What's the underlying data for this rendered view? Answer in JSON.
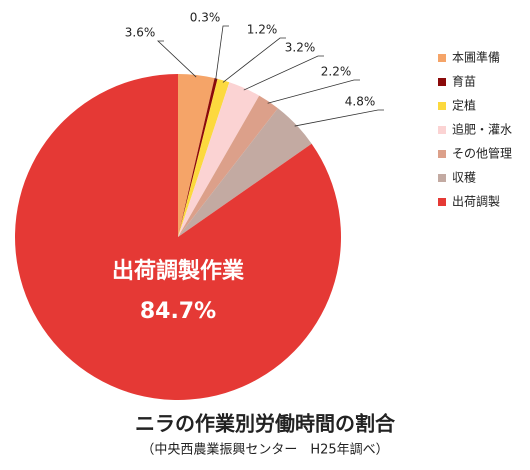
{
  "chart_data": {
    "type": "pie",
    "title": "ニラの作業別労働時間の割合",
    "subtitle": "（中央西農業振興センター　H25年調べ）",
    "annotation": "出荷調製作業",
    "categories": [
      "本圃準備",
      "育苗",
      "定植",
      "追肥・灌水",
      "その他管理",
      "収穫",
      "出荷調製"
    ],
    "values": [
      3.6,
      0.3,
      1.2,
      3.2,
      2.2,
      4.8,
      84.7
    ],
    "value_labels": [
      "3.6%",
      "0.3%",
      "1.2%",
      "3.2%",
      "2.2%",
      "4.8%",
      "84.7%"
    ],
    "colors": [
      "#f5a468",
      "#8b0a0a",
      "#fcd93e",
      "#fbd3d3",
      "#dca08a",
      "#c3aaa2",
      "#e53935"
    ],
    "legend": "right"
  }
}
